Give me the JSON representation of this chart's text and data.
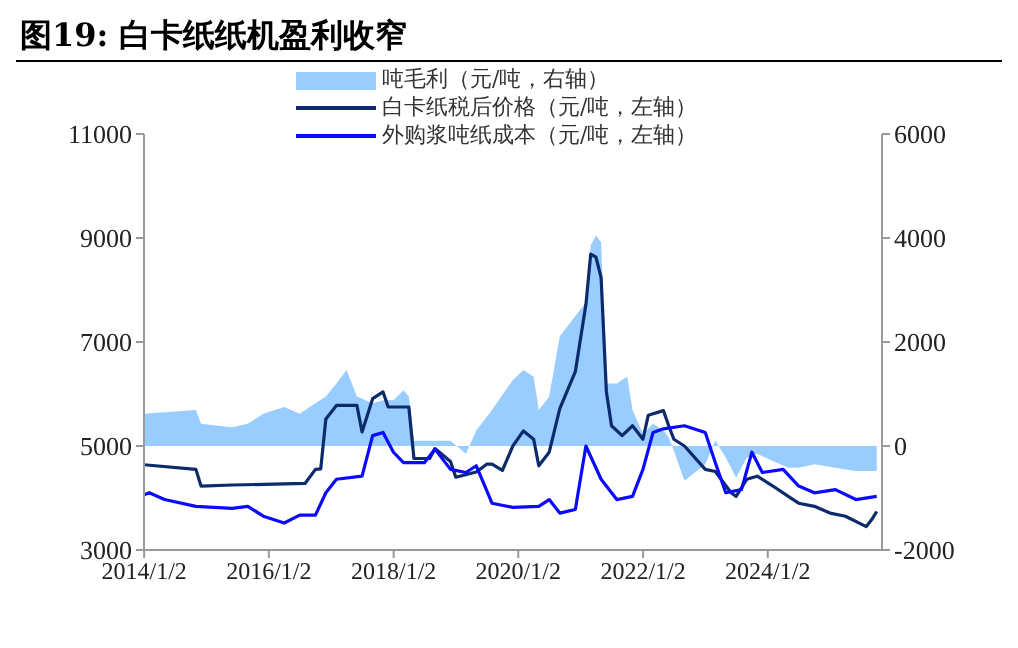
{
  "chart_data": {
    "type": "line",
    "title": "图19:  白卡纸纸机盈利收窄",
    "legend": "top",
    "grid": false,
    "marker": "none",
    "line_style": "solid",
    "xlim": [
      "2014-01",
      "2025-11"
    ],
    "xticks": [
      {
        "value": "2014-01-02",
        "label": "2014/1/2"
      },
      {
        "value": "2016-01-02",
        "label": "2016/1/2"
      },
      {
        "value": "2018-01-02",
        "label": "2018/1/2"
      },
      {
        "value": "2020-01-02",
        "label": "2020/1/2"
      },
      {
        "value": "2022-01-02",
        "label": "2022/1/2"
      },
      {
        "value": "2024-01-02",
        "label": "2024/1/2"
      }
    ],
    "ylim": [
      3000,
      11000
    ],
    "yticks": [
      3000,
      5000,
      7000,
      9000,
      11000
    ],
    "y2lim": [
      -2000,
      6000
    ],
    "y2ticks": [
      -2000,
      0,
      2000,
      4000,
      6000
    ],
    "series": [
      {
        "name": "吨毛利（元/吨，右轴）",
        "type": "area",
        "axis": "y2",
        "color": "#99ccff",
        "x": [
          "2014-01",
          "2014-11",
          "2014-12",
          "2015-06",
          "2015-09",
          "2015-12",
          "2016-04",
          "2016-07",
          "2016-10",
          "2016-12",
          "2017-02",
          "2017-04",
          "2017-06",
          "2017-09",
          "2017-11",
          "2018-01",
          "2018-03",
          "2018-04",
          "2018-05",
          "2018-08",
          "2018-12",
          "2019-03",
          "2019-05",
          "2019-08",
          "2019-12",
          "2020-02",
          "2020-04",
          "2020-05",
          "2020-07",
          "2020-09",
          "2020-12",
          "2021-02",
          "2021-03",
          "2021-04",
          "2021-05",
          "2021-06",
          "2021-08",
          "2021-10",
          "2021-11",
          "2022-01",
          "2022-03",
          "2022-05",
          "2022-06",
          "2022-07",
          "2022-09",
          "2023-01",
          "2023-03",
          "2023-05",
          "2023-07",
          "2023-09",
          "2023-11",
          "2024-02",
          "2024-05",
          "2024-07",
          "2024-10",
          "2025-02",
          "2025-06",
          "2025-10"
        ],
        "values": [
          620,
          690,
          430,
          360,
          430,
          620,
          750,
          620,
          820,
          950,
          1200,
          1460,
          950,
          820,
          880,
          880,
          1070,
          950,
          100,
          100,
          100,
          -150,
          300,
          690,
          1270,
          1460,
          1330,
          690,
          950,
          2110,
          2500,
          2760,
          3860,
          4050,
          3920,
          1200,
          1200,
          1330,
          690,
          230,
          430,
          300,
          170,
          -90,
          -670,
          -350,
          100,
          -220,
          -610,
          -220,
          -150,
          -290,
          -420,
          -420,
          -350,
          -420,
          -480,
          -480
        ]
      },
      {
        "name": "白卡纸税后价格（元/吨，左轴）",
        "color": "#0d2b6b",
        "x": [
          "2014-01",
          "2014-11",
          "2014-12",
          "2015-06",
          "2016-08",
          "2016-10",
          "2016-11",
          "2016-12",
          "2017-02",
          "2017-06",
          "2017-07",
          "2017-09",
          "2017-11",
          "2017-12",
          "2018-04",
          "2018-05",
          "2018-08",
          "2018-09",
          "2018-12",
          "2019-01",
          "2019-05",
          "2019-07",
          "2019-08",
          "2019-10",
          "2019-12",
          "2020-02",
          "2020-04",
          "2020-05",
          "2020-07",
          "2020-09",
          "2020-12",
          "2021-02",
          "2021-03",
          "2021-04",
          "2021-05",
          "2021-06",
          "2021-07",
          "2021-09",
          "2021-11",
          "2022-01",
          "2022-02",
          "2022-05",
          "2022-06",
          "2022-07",
          "2022-09",
          "2023-01",
          "2023-03",
          "2023-06",
          "2023-07",
          "2023-09",
          "2023-11",
          "2024-02",
          "2024-05",
          "2024-07",
          "2024-10",
          "2025-01",
          "2025-04",
          "2025-08",
          "2025-09",
          "2025-10"
        ],
        "values": [
          4640,
          4550,
          4230,
          4250,
          4280,
          4550,
          4560,
          5520,
          5780,
          5780,
          5270,
          5910,
          6040,
          5750,
          5750,
          4760,
          4760,
          4950,
          4700,
          4400,
          4500,
          4650,
          4650,
          4530,
          5000,
          5290,
          5130,
          4620,
          4880,
          5720,
          6430,
          7720,
          8690,
          8630,
          8240,
          6040,
          5390,
          5200,
          5390,
          5130,
          5590,
          5680,
          5390,
          5130,
          5000,
          4550,
          4510,
          4100,
          4030,
          4360,
          4420,
          4230,
          4030,
          3900,
          3840,
          3710,
          3650,
          3450,
          3580,
          3740
        ]
      },
      {
        "name": "外购浆吨纸成本（元/吨，左轴）",
        "color": "#0a0aff",
        "x": [
          "2014-01",
          "2014-02",
          "2014-05",
          "2014-11",
          "2015-06",
          "2015-09",
          "2015-12",
          "2016-04",
          "2016-07",
          "2016-10",
          "2016-12",
          "2017-02",
          "2017-07",
          "2017-09",
          "2017-11",
          "2018-01",
          "2018-03",
          "2018-07",
          "2018-09",
          "2018-12",
          "2019-03",
          "2019-05",
          "2019-08",
          "2019-12",
          "2020-05",
          "2020-07",
          "2020-09",
          "2020-12",
          "2021-02",
          "2021-05",
          "2021-08",
          "2021-11",
          "2022-01",
          "2022-03",
          "2022-05",
          "2022-09",
          "2023-01",
          "2023-03",
          "2023-05",
          "2023-08",
          "2023-10",
          "2023-12",
          "2024-04",
          "2024-07",
          "2024-10",
          "2025-02",
          "2025-06",
          "2025-10"
        ],
        "values": [
          4060,
          4100,
          3970,
          3840,
          3800,
          3840,
          3650,
          3520,
          3670,
          3670,
          4100,
          4360,
          4420,
          5200,
          5260,
          4880,
          4680,
          4680,
          4940,
          4550,
          4490,
          4620,
          3900,
          3820,
          3840,
          3970,
          3710,
          3780,
          5000,
          4360,
          3970,
          4030,
          4550,
          5260,
          5330,
          5390,
          5260,
          4680,
          4100,
          4160,
          4880,
          4490,
          4550,
          4230,
          4100,
          4160,
          3970,
          4030
        ]
      }
    ]
  }
}
